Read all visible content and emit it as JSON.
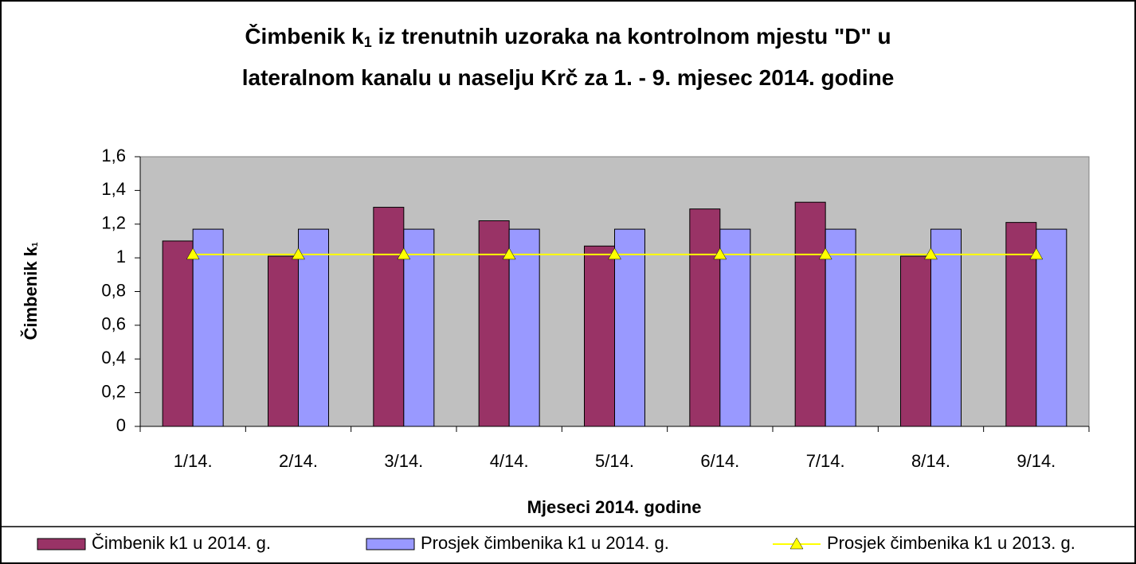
{
  "chart_data": {
    "type": "bar",
    "title_lines": [
      [
        "Čimbenik k",
        "1",
        " iz trenutnih uzoraka na kontrolnom mjestu \"D\" u"
      ],
      [
        "lateralnom kanalu u naselju Krč za 1. - 9. mjesec  2014. godine"
      ]
    ],
    "y_label": [
      "Čimbenik k",
      "1"
    ],
    "x_label": "Mjeseci 2014. godine",
    "categories": [
      "1/14.",
      "2/14.",
      "3/14.",
      "4/14.",
      "5/14.",
      "6/14.",
      "7/14.",
      "8/14.",
      "9/14."
    ],
    "series": [
      {
        "name": "Čimbenik k1 u 2014. g.",
        "type": "bar",
        "color": "#993366",
        "values": [
          1.1,
          1.01,
          1.3,
          1.22,
          1.07,
          1.29,
          1.33,
          1.01,
          1.21
        ]
      },
      {
        "name": "Prosjek čimbenika k1 u 2014. g.",
        "type": "bar",
        "color": "#9999ff",
        "values": [
          1.17,
          1.17,
          1.17,
          1.17,
          1.17,
          1.17,
          1.17,
          1.17,
          1.17
        ]
      },
      {
        "name": "Prosjek čimbenika k1 u 2013. g.",
        "type": "line",
        "color": "#ffff00",
        "values": [
          1.02,
          1.02,
          1.02,
          1.02,
          1.02,
          1.02,
          1.02,
          1.02,
          1.02
        ]
      }
    ],
    "ylim": [
      0,
      1.6
    ],
    "yticks": [
      0,
      {
        "value": 0.2,
        "label": "0,2"
      },
      {
        "value": 0.4,
        "label": "0,4"
      },
      {
        "value": 0.6,
        "label": "0,6"
      },
      {
        "value": 0.8,
        "label": "0,8"
      },
      1,
      {
        "value": 1.2,
        "label": "1,2"
      },
      {
        "value": 1.4,
        "label": "1,4"
      },
      {
        "value": 1.6,
        "label": "1,6"
      }
    ],
    "plot_background": "#c0c0c0",
    "legend": "bottom"
  }
}
